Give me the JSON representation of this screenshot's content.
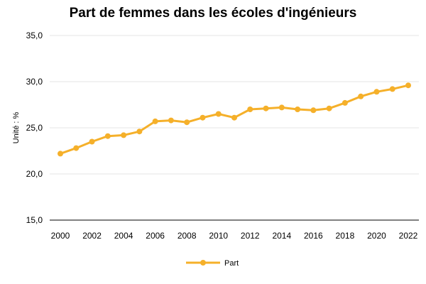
{
  "chart_data": {
    "type": "line",
    "title": "Part de femmes dans les écoles d'ingénieurs",
    "xlabel": "",
    "ylabel": "Unité : %",
    "x": [
      2000,
      2001,
      2002,
      2003,
      2004,
      2005,
      2006,
      2007,
      2008,
      2009,
      2010,
      2011,
      2012,
      2013,
      2014,
      2015,
      2016,
      2017,
      2018,
      2019,
      2020,
      2021,
      2022
    ],
    "x_tick_labels": [
      "2000",
      "2002",
      "2004",
      "2006",
      "2008",
      "2010",
      "2012",
      "2014",
      "2016",
      "2018",
      "2020",
      "2022"
    ],
    "y_tick_labels": [
      "15,0",
      "20,0",
      "25,0",
      "30,0",
      "35,0"
    ],
    "ylim": [
      15,
      35
    ],
    "grid": true,
    "legend_position": "bottom",
    "series": [
      {
        "name": "Part",
        "color": "#F5B02A",
        "values": [
          22.2,
          22.8,
          23.5,
          24.1,
          24.2,
          24.6,
          25.7,
          25.8,
          25.6,
          26.1,
          26.5,
          26.1,
          27.0,
          27.1,
          27.2,
          27.0,
          26.9,
          27.1,
          27.7,
          28.4,
          28.9,
          29.2,
          29.6
        ]
      }
    ]
  }
}
